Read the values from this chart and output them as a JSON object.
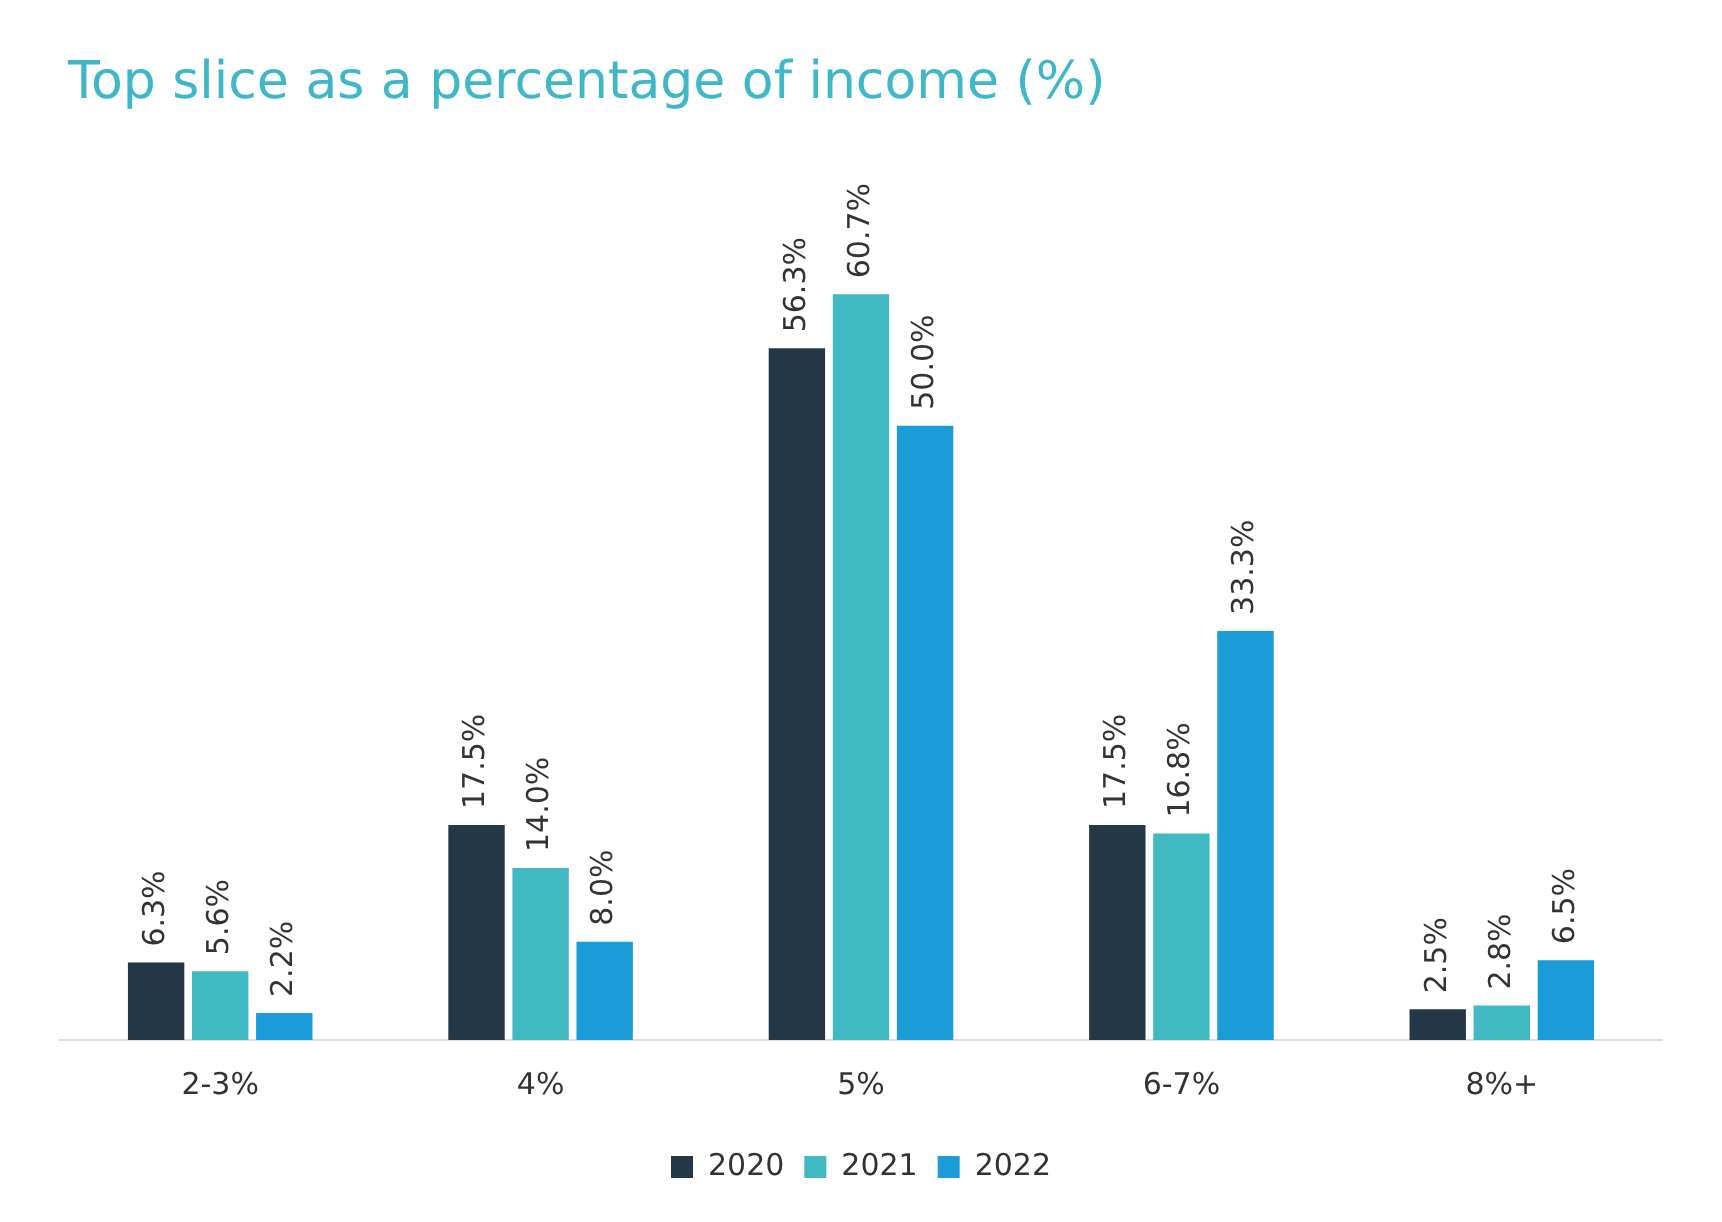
{
  "chart_data": {
    "type": "bar",
    "title": "Top slice as a percentage of income (%)",
    "categories": [
      "2-3%",
      "4%",
      "5%",
      "6-7%",
      "8%+"
    ],
    "series": [
      {
        "name": "2020",
        "color": "#243746",
        "values": [
          6.3,
          17.5,
          56.3,
          17.5,
          2.5
        ],
        "value_labels": [
          "6.3%",
          "17.5%",
          "56.3%",
          "17.5%",
          "2.5%"
        ]
      },
      {
        "name": "2021",
        "color": "#41b9c3",
        "values": [
          5.6,
          14.0,
          60.7,
          16.8,
          2.8
        ],
        "value_labels": [
          "5.6%",
          "14.0%",
          "60.7%",
          "16.8%",
          "2.8%"
        ]
      },
      {
        "name": "2022",
        "color": "#1b9bd7",
        "values": [
          2.2,
          8.0,
          50.0,
          33.3,
          6.5
        ],
        "value_labels": [
          "2.2%",
          "8.0%",
          "50.0%",
          "33.3%",
          "6.5%"
        ]
      }
    ],
    "legend": "bottom",
    "grid": false
  }
}
